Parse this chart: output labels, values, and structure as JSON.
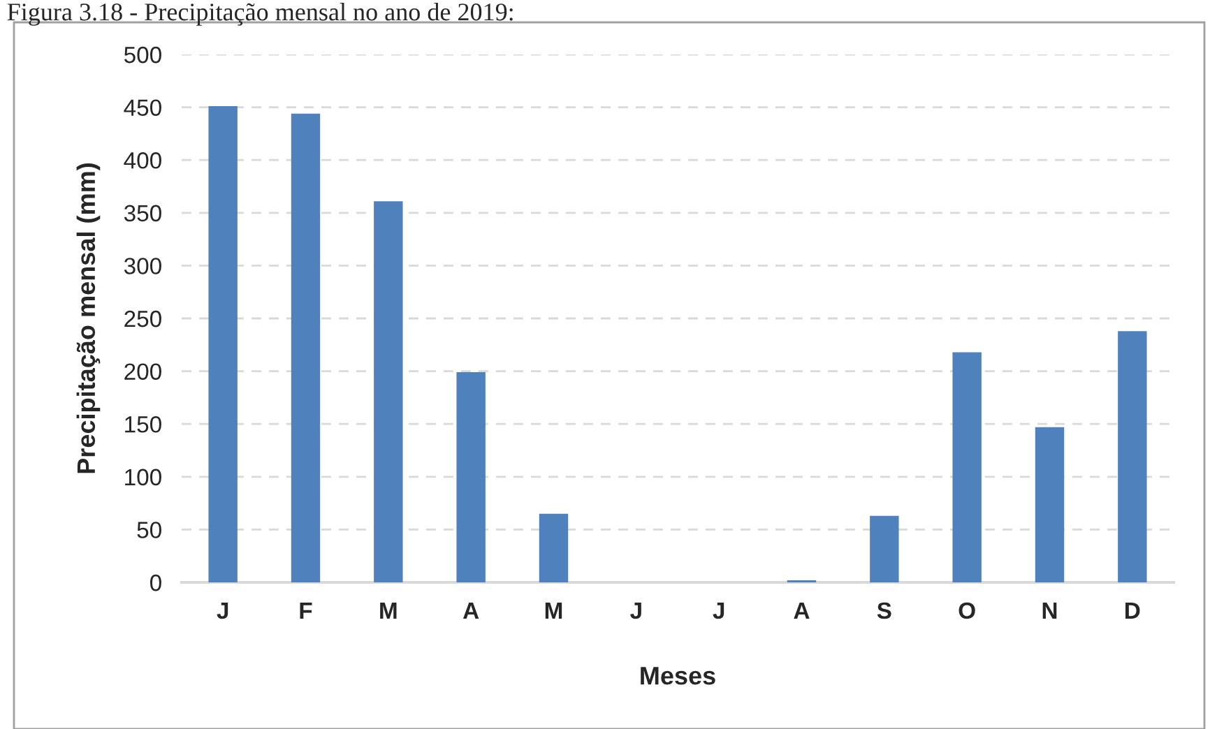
{
  "chart_data": {
    "type": "bar",
    "title": "Figura 3.18 - Precipitação mensal no ano de 2019:",
    "xlabel": "Meses",
    "ylabel": "Precipitação mensal (mm)",
    "categories": [
      "J",
      "F",
      "M",
      "A",
      "M",
      "J",
      "J",
      "A",
      "S",
      "O",
      "N",
      "D"
    ],
    "values": [
      451,
      444,
      361,
      199,
      65,
      0,
      0,
      2,
      63,
      218,
      147,
      238
    ],
    "color": "#4f81bd",
    "ylim": [
      0,
      500
    ],
    "yticks": [
      0,
      50,
      100,
      150,
      200,
      250,
      300,
      350,
      400,
      450,
      500
    ],
    "grid": "y",
    "line_style": "dashed"
  }
}
